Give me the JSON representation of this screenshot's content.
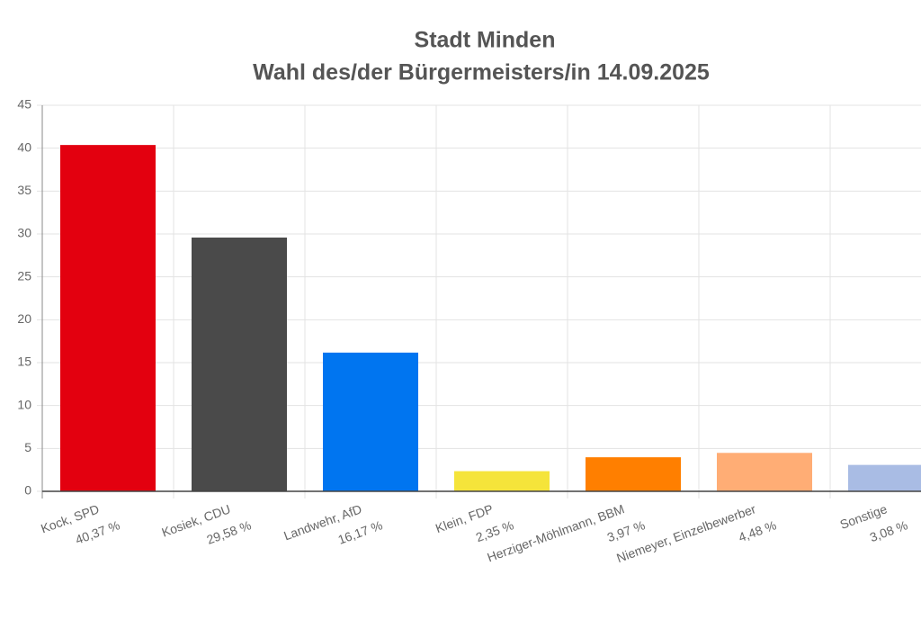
{
  "chart_data": {
    "type": "bar",
    "title": "Stadt Minden",
    "subtitle": "Wahl des/der Bürgermeisters/in 14.09.2025",
    "categories": [
      "Kock, SPD",
      "Kosiek, CDU",
      "Landwehr, AfD",
      "Klein, FDP",
      "Herziger-Möhlmann, BBM",
      "Niemeyer, Einzelbewerber",
      "Sonstige"
    ],
    "values": [
      40.37,
      29.58,
      16.17,
      2.35,
      3.97,
      4.48,
      3.08
    ],
    "value_labels": [
      "40,37 %",
      "29,58 %",
      "16,17 %",
      "2,35 %",
      "3,97 %",
      "4,48 %",
      "3,08 %"
    ],
    "colors": [
      "#e3000f",
      "#4a4a4a",
      "#0075f0",
      "#f5e43a",
      "#ff7f00",
      "#ffad75",
      "#a9bce4"
    ],
    "ylim": [
      0,
      45
    ],
    "yticks": [
      0,
      5,
      10,
      15,
      20,
      25,
      30,
      35,
      40,
      45
    ],
    "grid": true
  }
}
